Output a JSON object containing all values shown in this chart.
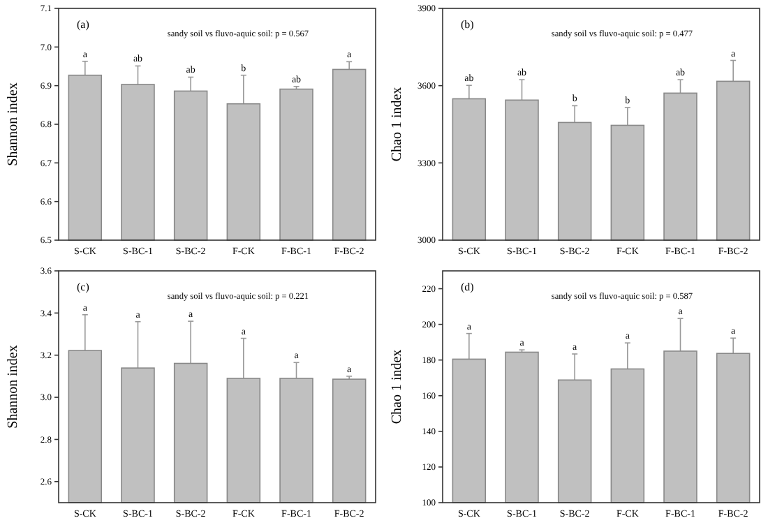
{
  "chart_data": [
    {
      "type": "bar",
      "title": "(a)",
      "subtitle": "sandy soil vs fluvo-aquic soil: p = 0.567",
      "ylabel": "Shannon index",
      "categories": [
        "S-CK",
        "S-BC-1",
        "S-BC-2",
        "F-CK",
        "F-BC-1",
        "F-BC-2"
      ],
      "values": [
        6.927,
        6.903,
        6.886,
        6.853,
        6.891,
        6.942
      ],
      "errors": [
        0.036,
        0.048,
        0.036,
        0.074,
        0.007,
        0.02
      ],
      "color": "#c0c0c0",
      "ylim": [
        6.5,
        7.1
      ],
      "yticks": [
        6.5,
        6.6,
        6.7,
        6.8,
        6.9,
        {
          "value": 7,
          "label": "7.0"
        },
        7.1
      ],
      "grid": false,
      "annotations": [
        {
          "text": "a",
          "x": "S-CK",
          "y": 6.963
        },
        {
          "text": "ab",
          "x": "S-BC-1",
          "y": 6.951
        },
        {
          "text": "ab",
          "x": "S-BC-2",
          "y": 6.922
        },
        {
          "text": "b",
          "x": "F-CK",
          "y": 6.927
        },
        {
          "text": "ab",
          "x": "F-BC-1",
          "y": 6.898
        },
        {
          "text": "a",
          "x": "F-BC-2",
          "y": 6.962
        }
      ]
    },
    {
      "type": "bar",
      "title": "(b)",
      "subtitle": "sandy soil vs fluvo-aquic soil: p = 0.477",
      "ylabel": "Chao 1 index",
      "categories": [
        "S-CK",
        "S-BC-1",
        "S-BC-2",
        "F-CK",
        "F-BC-1",
        "F-BC-2"
      ],
      "values": [
        3549,
        3544,
        3457,
        3446,
        3571,
        3617
      ],
      "errors": [
        52,
        79,
        65,
        69,
        52,
        81
      ],
      "color": "#c0c0c0",
      "ylim": [
        3000,
        3900
      ],
      "yticks": [
        3000,
        3300,
        3600,
        3900
      ],
      "grid": false,
      "annotations": [
        {
          "text": "ab",
          "x": "S-CK",
          "y": 3601
        },
        {
          "text": "ab",
          "x": "S-BC-1",
          "y": 3623
        },
        {
          "text": "b",
          "x": "S-BC-2",
          "y": 3522
        },
        {
          "text": "b",
          "x": "F-CK",
          "y": 3515
        },
        {
          "text": "ab",
          "x": "F-BC-1",
          "y": 3623
        },
        {
          "text": "a",
          "x": "F-BC-2",
          "y": 3698
        }
      ]
    },
    {
      "type": "bar",
      "title": "(c)",
      "subtitle": "sandy soil vs fluvo-aquic soil: p = 0.221",
      "ylabel": "Shannon index",
      "categories": [
        "S-CK",
        "S-BC-1",
        "S-BC-2",
        "F-CK",
        "F-BC-1",
        "F-BC-2"
      ],
      "values": [
        3.222,
        3.139,
        3.161,
        3.09,
        3.09,
        3.086
      ],
      "errors": [
        0.17,
        0.22,
        0.2,
        0.19,
        0.075,
        0.014
      ],
      "color": "#c0c0c0",
      "ylim": [
        2.5,
        3.6
      ],
      "yticks": [
        2.6,
        2.8,
        {
          "value": 3,
          "label": "3.0"
        },
        3.2,
        3.4,
        3.6
      ],
      "grid": false,
      "annotations": [
        {
          "text": "a",
          "x": "S-CK",
          "y": 3.392
        },
        {
          "text": "a",
          "x": "S-BC-1",
          "y": 3.359
        },
        {
          "text": "a",
          "x": "S-BC-2",
          "y": 3.361
        },
        {
          "text": "a",
          "x": "F-CK",
          "y": 3.28
        },
        {
          "text": "a",
          "x": "F-BC-1",
          "y": 3.165
        },
        {
          "text": "a",
          "x": "F-BC-2",
          "y": 3.1
        }
      ]
    },
    {
      "type": "bar",
      "title": "(d)",
      "subtitle": "sandy soil vs fluvo-aquic soil: p = 0.587",
      "ylabel": "Chao 1 index",
      "categories": [
        "S-CK",
        "S-BC-1",
        "S-BC-2",
        "F-CK",
        "F-BC-1",
        "F-BC-2"
      ],
      "values": [
        180.5,
        184.4,
        168.8,
        175,
        185,
        183.7
      ],
      "errors": [
        14.4,
        1.3,
        14.6,
        14.6,
        18.3,
        8.6
      ],
      "color": "#c0c0c0",
      "ylim": [
        100,
        230
      ],
      "yticks": [
        100,
        120,
        140,
        160,
        180,
        200,
        220
      ],
      "grid": false,
      "annotations": [
        {
          "text": "a",
          "x": "S-CK",
          "y": 194.9
        },
        {
          "text": "a",
          "x": "S-BC-1",
          "y": 185.7
        },
        {
          "text": "a",
          "x": "S-BC-2",
          "y": 183.4
        },
        {
          "text": "a",
          "x": "F-CK",
          "y": 189.6
        },
        {
          "text": "a",
          "x": "F-BC-1",
          "y": 203.3
        },
        {
          "text": "a",
          "x": "F-BC-2",
          "y": 192.3
        }
      ]
    }
  ]
}
